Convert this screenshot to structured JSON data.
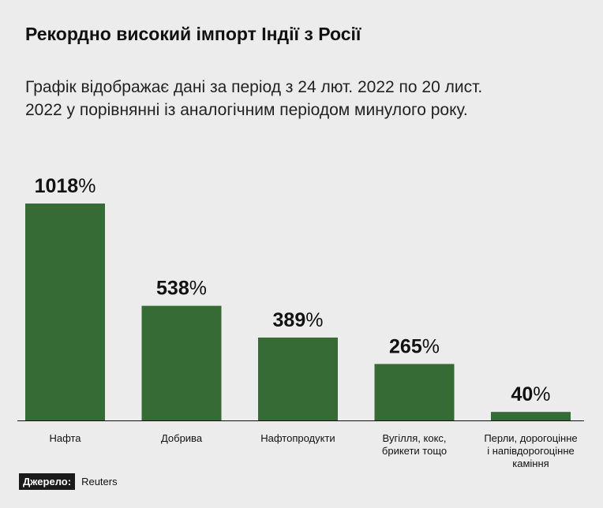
{
  "header": {
    "title": "Рекордно високий імпорт Індії з Росії",
    "subtitle": "Графік відображає дані за період з 24 лют. 2022 по 20 лист. 2022 у порівнянні із аналогічним періодом минулого року."
  },
  "source": {
    "label": "Джерело:",
    "value": "Reuters"
  },
  "colors": {
    "bar": "#376b35",
    "background": "#ececec",
    "axis": "#111111"
  },
  "chart_data": {
    "type": "bar",
    "categories": [
      [
        "Нафта"
      ],
      [
        "Добрива"
      ],
      [
        "Нафтопродукти"
      ],
      [
        "Вугілля, кокс,",
        "брикети тощо"
      ],
      [
        "Перли, дорогоцінне",
        "і напівдорогоцінне",
        "каміння"
      ]
    ],
    "values": [
      1018,
      538,
      389,
      265,
      40
    ],
    "value_suffix": "%",
    "ylim": [
      0,
      1018
    ],
    "grid": false,
    "legend": "none"
  }
}
